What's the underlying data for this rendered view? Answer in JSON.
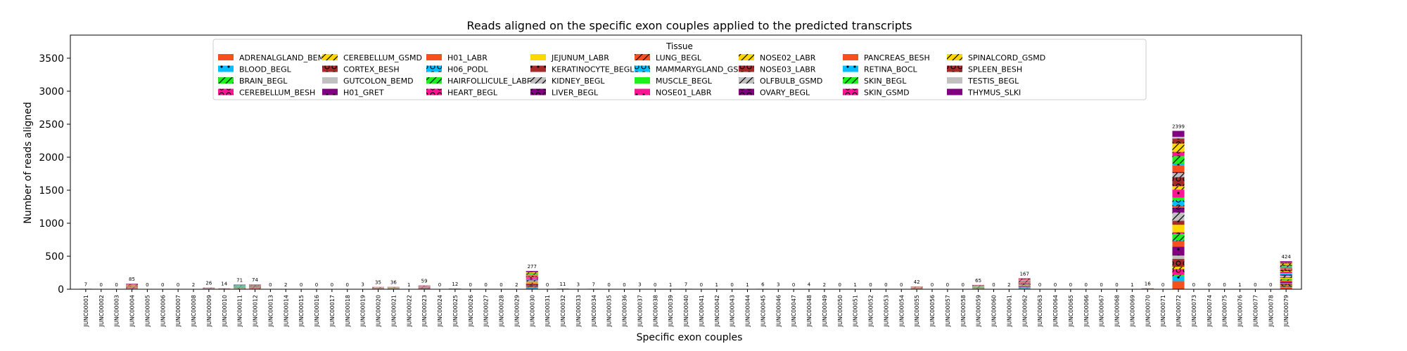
{
  "chart_data": {
    "type": "bar",
    "stacked": true,
    "title": "Reads aligned on the specific exon couples applied to the predicted transcripts",
    "xlabel": "Specific exon couples",
    "ylabel": "Number of reads aligned",
    "ylim": [
      0,
      3850
    ],
    "yticks": [
      0,
      500,
      1000,
      1500,
      2000,
      2500,
      3000,
      3500
    ],
    "grid": false,
    "legend": {
      "title": "Tissue",
      "placement": "top-center",
      "columns": 9,
      "entries": [
        {
          "name": "ADRENALGLAND_BEMD",
          "color": "#f4511e",
          "pattern": "none"
        },
        {
          "name": "BLOOD_BEGL",
          "color": "#00bfff",
          "pattern": "dot"
        },
        {
          "name": "BRAIN_BEGL",
          "color": "#1ef01e",
          "pattern": "slash"
        },
        {
          "name": "CEREBELLUM_BESH",
          "color": "#ff1493",
          "pattern": "ring"
        },
        {
          "name": "CEREBELLUM_GSMD",
          "color": "#ffd700",
          "pattern": "slash"
        },
        {
          "name": "CORTEX_BESH",
          "color": "#a52a2a",
          "pattern": "ring"
        },
        {
          "name": "GUTCOLON_BEMD",
          "color": "#c0c0c0",
          "pattern": "none"
        },
        {
          "name": "H01_GRET",
          "color": "#800080",
          "pattern": "dot"
        },
        {
          "name": "H01_LABR",
          "color": "#f4511e",
          "pattern": "none"
        },
        {
          "name": "H06_PODL",
          "color": "#00bfff",
          "pattern": "ring"
        },
        {
          "name": "HAIRFOLLICULE_LABR",
          "color": "#1ef01e",
          "pattern": "slash"
        },
        {
          "name": "HEART_BEGL",
          "color": "#ff1493",
          "pattern": "ring"
        },
        {
          "name": "JEJUNUM_LABR",
          "color": "#ffd700",
          "pattern": "none"
        },
        {
          "name": "KERATINOCYTE_BEGL",
          "color": "#a52a2a",
          "pattern": "dot"
        },
        {
          "name": "KIDNEY_BEGL",
          "color": "#c0c0c0",
          "pattern": "slash"
        },
        {
          "name": "LIVER_BEGL",
          "color": "#800080",
          "pattern": "ring"
        },
        {
          "name": "LUNG_BEGL",
          "color": "#f4511e",
          "pattern": "slash"
        },
        {
          "name": "MAMMARYGLAND_GSMD",
          "color": "#00bfff",
          "pattern": "ring"
        },
        {
          "name": "MUSCLE_BEGL",
          "color": "#1ef01e",
          "pattern": "none"
        },
        {
          "name": "NOSE01_LABR",
          "color": "#ff1493",
          "pattern": "dot"
        },
        {
          "name": "NOSE02_LABR",
          "color": "#ffd700",
          "pattern": "slash"
        },
        {
          "name": "NOSE03_LABR",
          "color": "#a52a2a",
          "pattern": "ring"
        },
        {
          "name": "OLFBULB_GSMD",
          "color": "#c0c0c0",
          "pattern": "slash"
        },
        {
          "name": "OVARY_BEGL",
          "color": "#800080",
          "pattern": "ring"
        },
        {
          "name": "PANCREAS_BESH",
          "color": "#f4511e",
          "pattern": "none"
        },
        {
          "name": "RETINA_BOCL",
          "color": "#00bfff",
          "pattern": "dot"
        },
        {
          "name": "SKIN_BEGL",
          "color": "#1ef01e",
          "pattern": "slash"
        },
        {
          "name": "SKIN_GSMD",
          "color": "#ff1493",
          "pattern": "ring"
        },
        {
          "name": "SPINALCORD_GSMD",
          "color": "#ffd700",
          "pattern": "slash"
        },
        {
          "name": "SPLEEN_BESH",
          "color": "#a52a2a",
          "pattern": "ring"
        },
        {
          "name": "TESTIS_BEGL",
          "color": "#c0c0c0",
          "pattern": "none"
        },
        {
          "name": "THYMUS_SLKI",
          "color": "#800080",
          "pattern": "none"
        }
      ]
    },
    "categories": [
      "JUNC00001",
      "JUNC00002",
      "JUNC00003",
      "JUNC00004",
      "JUNC00005",
      "JUNC00006",
      "JUNC00007",
      "JUNC00008",
      "JUNC00009",
      "JUNC00010",
      "JUNC00011",
      "JUNC00012",
      "JUNC00013",
      "JUNC00014",
      "JUNC00015",
      "JUNC00016",
      "JUNC00017",
      "JUNC00018",
      "JUNC00019",
      "JUNC00020",
      "JUNC00021",
      "JUNC00022",
      "JUNC00023",
      "JUNC00024",
      "JUNC00025",
      "JUNC00026",
      "JUNC00027",
      "JUNC00028",
      "JUNC00029",
      "JUNC00030",
      "JUNC00031",
      "JUNC00032",
      "JUNC00033",
      "JUNC00034",
      "JUNC00035",
      "JUNC00036",
      "JUNC00037",
      "JUNC00038",
      "JUNC00039",
      "JUNC00040",
      "JUNC00041",
      "JUNC00042",
      "JUNC00043",
      "JUNC00044",
      "JUNC00045",
      "JUNC00046",
      "JUNC00047",
      "JUNC00048",
      "JUNC00049",
      "JUNC00050",
      "JUNC00051",
      "JUNC00052",
      "JUNC00053",
      "JUNC00054",
      "JUNC00055",
      "JUNC00056",
      "JUNC00057",
      "JUNC00058",
      "JUNC00059",
      "JUNC00060",
      "JUNC00061",
      "JUNC00062",
      "JUNC00063",
      "JUNC00064",
      "JUNC00065",
      "JUNC00066",
      "JUNC00067",
      "JUNC00068",
      "JUNC00069",
      "JUNC00070",
      "JUNC00071",
      "JUNC00072",
      "JUNC00073",
      "JUNC00074",
      "JUNC00075",
      "JUNC00076",
      "JUNC00077",
      "JUNC00078",
      "JUNC00079"
    ],
    "totals": [
      7,
      0,
      0,
      85,
      0,
      0,
      0,
      2,
      26,
      14,
      71,
      74,
      0,
      2,
      0,
      0,
      0,
      0,
      3,
      35,
      36,
      1,
      59,
      0,
      12,
      0,
      0,
      0,
      2,
      277,
      0,
      11,
      3,
      7,
      0,
      0,
      3,
      0,
      1,
      7,
      0,
      1,
      0,
      1,
      6,
      3,
      0,
      4,
      2,
      0,
      1,
      0,
      0,
      0,
      42,
      0,
      0,
      0,
      65,
      0,
      2,
      167,
      0,
      0,
      0,
      0,
      0,
      0,
      1,
      16,
      0,
      2399,
      0,
      0,
      0,
      1,
      0,
      0,
      424
    ]
  }
}
